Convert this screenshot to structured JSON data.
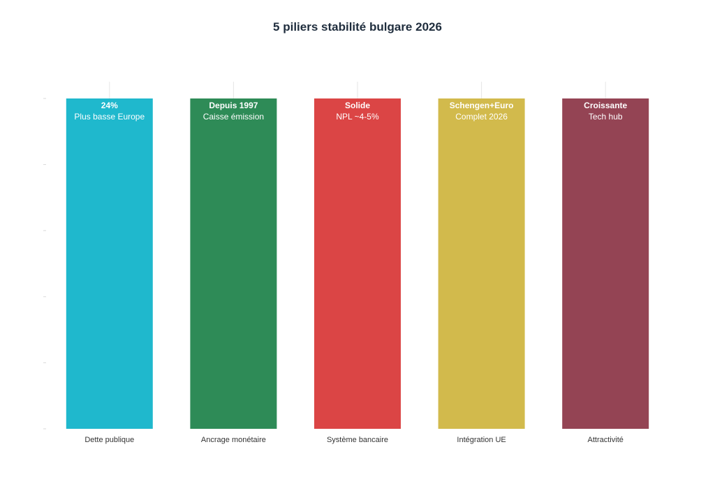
{
  "chart_data": {
    "type": "bar",
    "title": "5 piliers stabilité bulgare 2026",
    "xlabel": "",
    "ylabel": "",
    "ylim": [
      0,
      100
    ],
    "grid": true,
    "categories": [
      "Dette publique",
      "Ancrage monétaire",
      "Système bancaire",
      "Intégration UE",
      "Attractivité"
    ],
    "values": [
      100,
      100,
      100,
      100,
      100
    ],
    "colors": [
      "#1fb8cd",
      "#2e8b57",
      "#db4545",
      "#d2ba4c",
      "#944454"
    ],
    "labels_main": [
      "24%",
      "Depuis 1997",
      "Solide",
      "Schengen+Euro",
      "Croissante"
    ],
    "labels_sub": [
      "Plus basse Europe",
      "Caisse émission",
      "NPL ~4-5%",
      "Complet 2026",
      "Tech hub"
    ]
  }
}
